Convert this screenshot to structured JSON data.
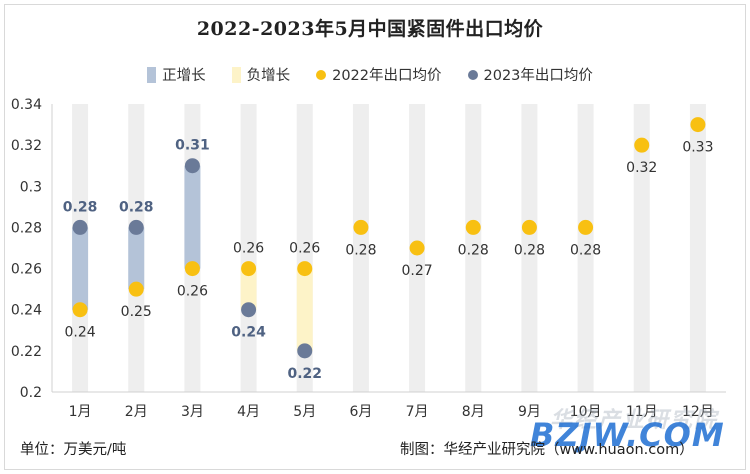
{
  "title": "2022-2023年5月中国紧固件出口均价",
  "legend": {
    "positive": "正增长",
    "negative": "负增长",
    "series2022": "2022年出口均价",
    "series2023": "2023年出口均价"
  },
  "footer": {
    "unit": "单位：万美元/吨",
    "source": "制图：华经产业研究院（www.huaon.com）"
  },
  "watermark": {
    "cn": "华经产业研究院",
    "en": "BZJW.COM"
  },
  "colors": {
    "positive_bar": "#b4c3d8",
    "negative_bar": "#fdf3c8",
    "background_bar": "#eeeeee",
    "dot_2022": "#f8c012",
    "dot_2023": "#6a7a98",
    "label_2023": "#4f6282",
    "label_2022": "#333333"
  },
  "chart_data": {
    "type": "scatter",
    "title": "2022-2023年5月中国紧固件出口均价",
    "categories": [
      "1月",
      "2月",
      "3月",
      "4月",
      "5月",
      "6月",
      "7月",
      "8月",
      "9月",
      "10月",
      "11月",
      "12月"
    ],
    "series": [
      {
        "name": "2022年出口均价",
        "values": [
          0.24,
          0.25,
          0.26,
          0.26,
          0.26,
          0.28,
          0.27,
          0.28,
          0.28,
          0.28,
          0.32,
          0.33
        ]
      },
      {
        "name": "2023年出口均价",
        "values": [
          0.28,
          0.28,
          0.31,
          0.24,
          0.22,
          null,
          null,
          null,
          null,
          null,
          null,
          null
        ]
      }
    ],
    "ylim": [
      0.2,
      0.34
    ],
    "yticks": [
      "0.2",
      "0.22",
      "0.24",
      "0.26",
      "0.28",
      "0.3",
      "0.32",
      "0.34"
    ],
    "ylabel": "",
    "xlabel": "",
    "grid": false,
    "legend_position": "top"
  }
}
